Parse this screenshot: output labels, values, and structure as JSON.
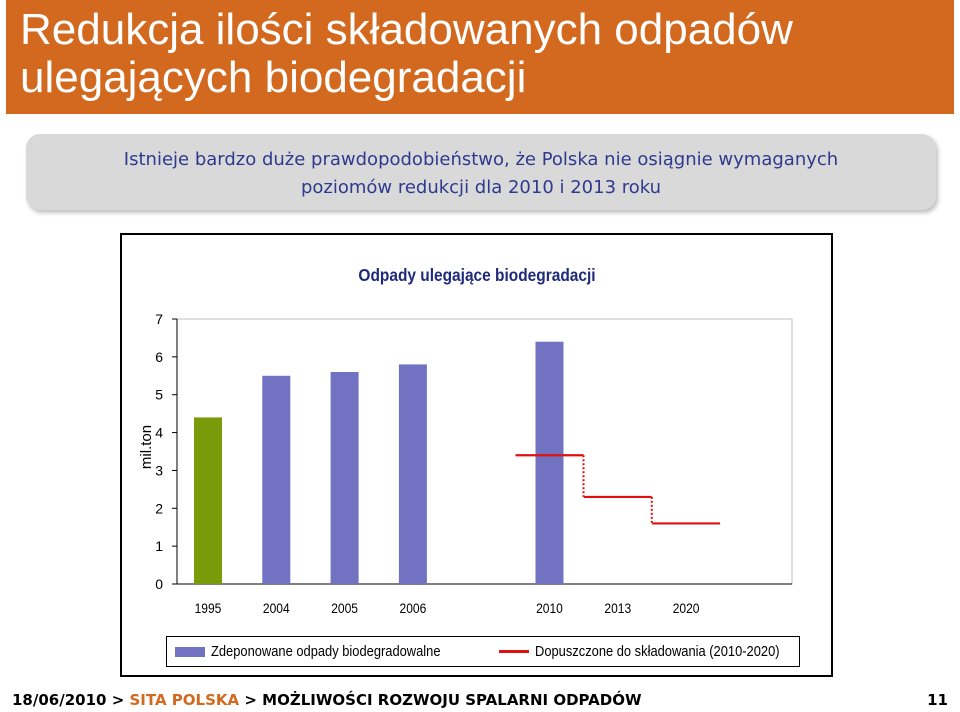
{
  "slide": {
    "title_lines": [
      "Redukcja ilości składowanych odpadów",
      "ulegających biodegradacji"
    ],
    "subtitle_lines": [
      "Istnieje bardzo duże prawdopodobieństwo, że Polska nie osiągnie wymaganych",
      "poziomów redukcji dla 2010 i 2013 roku"
    ]
  },
  "colors": {
    "accent": "#d2691e",
    "bar_default": "#7272c2",
    "bar_highlight": "#7a9a0a",
    "limit_line": "#e01010"
  },
  "chart_data": {
    "type": "bar",
    "title": "Odpady ulegające biodegradacji",
    "ylabel": "mil.ton",
    "xlabel": "",
    "ylim": [
      0,
      7
    ],
    "yticks": [
      "0",
      "1",
      "2",
      "3",
      "4",
      "5",
      "6",
      "7"
    ],
    "categories": [
      "1995",
      "2004",
      "2005",
      "2006",
      "",
      "2010",
      "2013",
      "2020"
    ],
    "series": [
      {
        "name": "Zdeponowane odpady biodegradowalne",
        "values": [
          4.4,
          5.5,
          5.6,
          5.8,
          null,
          6.4,
          null,
          null
        ],
        "highlight_index": 0
      }
    ],
    "limits": {
      "name": "Dopuszczone do składowania (2010-2020)",
      "steps": [
        {
          "category": "2010",
          "value": 3.4
        },
        {
          "category": "2013",
          "value": 2.3
        },
        {
          "category": "2020",
          "value": 1.6
        }
      ]
    },
    "legend_position": "bottom"
  },
  "footer": {
    "date": "18/06/2010",
    "sep1": ">",
    "company": "SITA POLSKA",
    "sep2": ">",
    "section": "MOŻLIWOŚCI ROZWOJU SPALARNI ODPADÓW",
    "page": "11"
  }
}
